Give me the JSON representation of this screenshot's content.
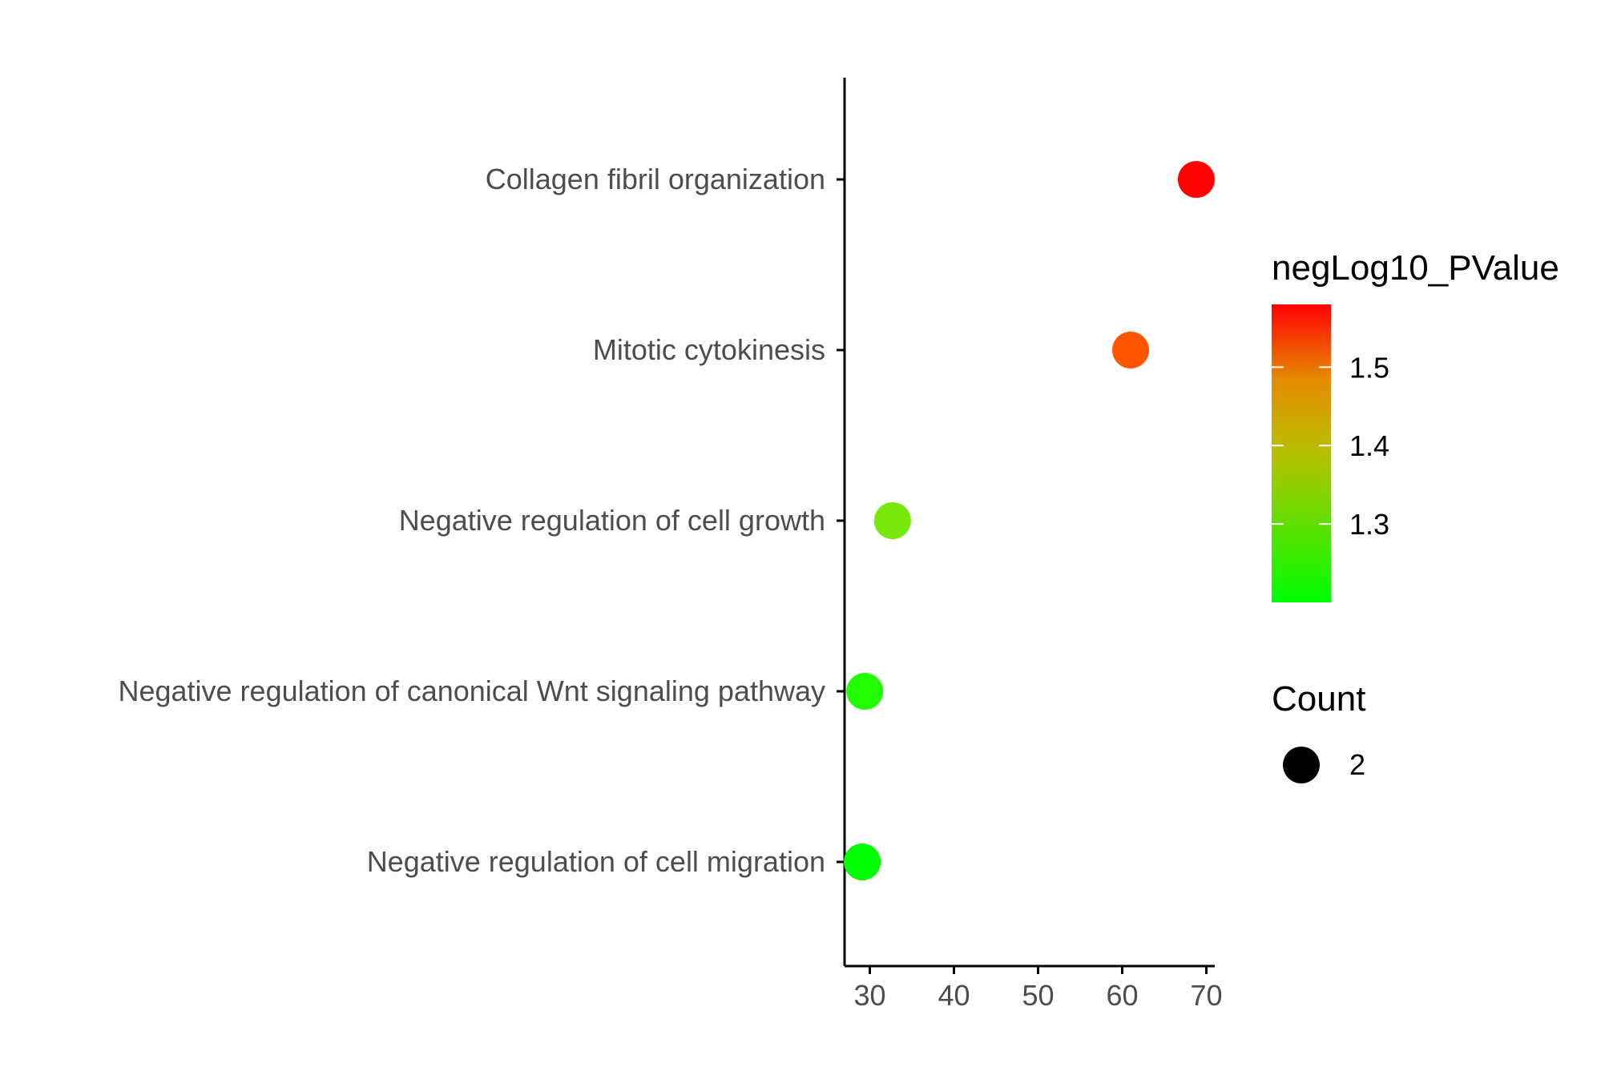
{
  "chart_data": {
    "type": "scatter",
    "title": "",
    "xlabel": "",
    "ylabel": "",
    "xlim": [
      27,
      71
    ],
    "xticks": [
      30,
      40,
      50,
      60,
      70
    ],
    "xtick_labels": [
      "30",
      "40",
      "50",
      "60",
      "70"
    ],
    "categories": [
      "Collagen fibril organization",
      "Mitotic cytokinesis",
      "Negative regulation of cell growth",
      "Negative regulation of canonical Wnt signaling pathway",
      "Negative regulation of cell migration"
    ],
    "points": [
      {
        "term": "Collagen fibril organization",
        "x": 68.8,
        "negLog10_PValue": 1.58,
        "count": 2,
        "color": "#ff0000"
      },
      {
        "term": "Mitotic cytokinesis",
        "x": 61.0,
        "negLog10_PValue": 1.52,
        "count": 2,
        "color": "#ff5500"
      },
      {
        "term": "Negative regulation of cell growth",
        "x": 32.7,
        "negLog10_PValue": 1.25,
        "count": 2,
        "color": "#77e80a"
      },
      {
        "term": "Negative regulation of canonical Wnt signaling pathway",
        "x": 29.4,
        "negLog10_PValue": 1.21,
        "count": 2,
        "color": "#22ff00"
      },
      {
        "term": "Negative regulation of cell migration",
        "x": 29.1,
        "negLog10_PValue": 1.2,
        "count": 2,
        "color": "#00ff00"
      }
    ],
    "color_legend": {
      "title": "negLog10_PValue",
      "min": 1.2,
      "max": 1.58,
      "low_color": "#00ff00",
      "high_color": "#ff0000",
      "ticks": [
        1.3,
        1.4,
        1.5
      ],
      "tick_labels": [
        "1.3",
        "1.4",
        "1.5"
      ]
    },
    "size_legend": {
      "title": "Count",
      "values": [
        2
      ],
      "labels": [
        "2"
      ]
    }
  }
}
